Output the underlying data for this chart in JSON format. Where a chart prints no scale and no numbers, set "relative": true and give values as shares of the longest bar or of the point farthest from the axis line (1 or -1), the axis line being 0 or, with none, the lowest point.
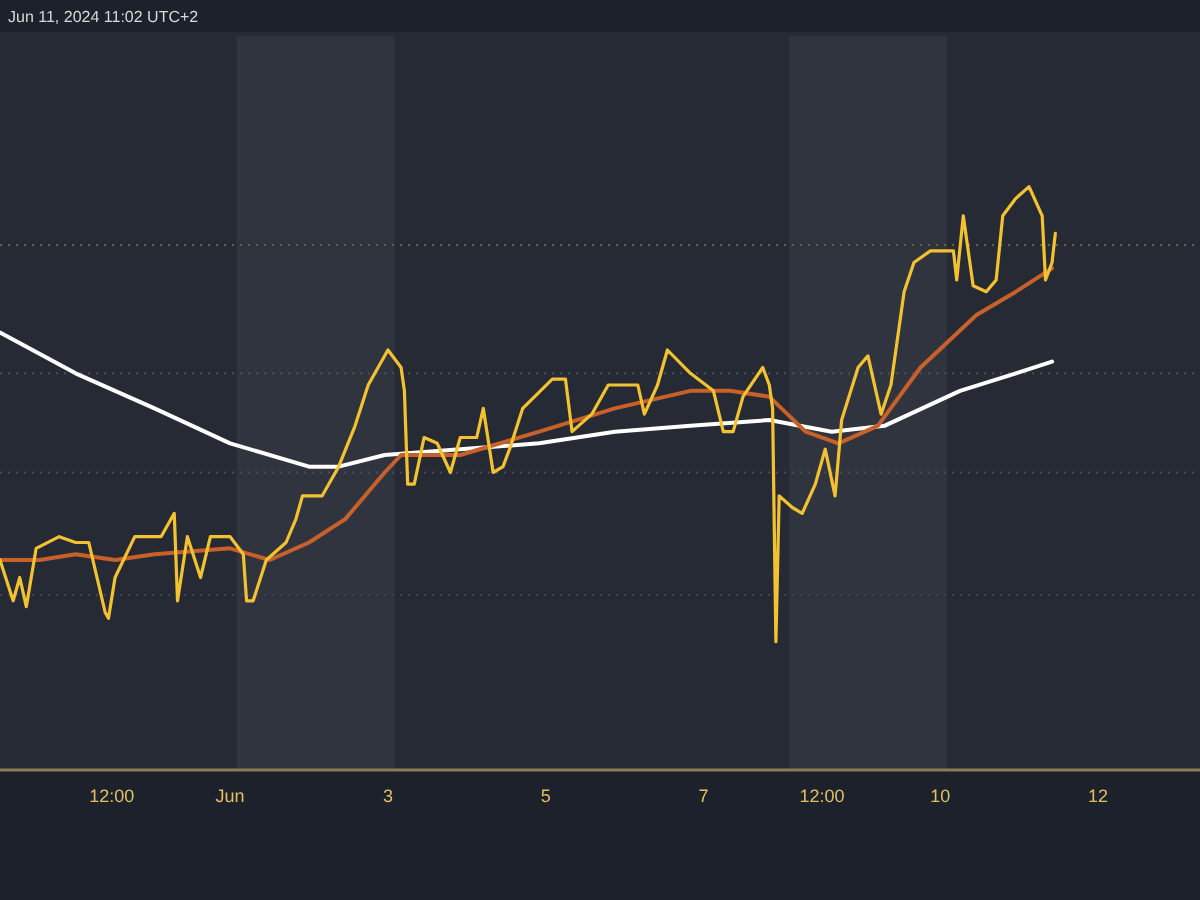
{
  "chart_data": {
    "type": "line",
    "relative": true,
    "grid": false,
    "tick_labels": "x",
    "xlim": [
      "2024-05-29T02:00",
      "2024-06-13T07:00"
    ],
    "xticks": [
      {
        "value": "2024-05-30T12:00",
        "label": "12:00"
      },
      {
        "value": "2024-06-01",
        "label": "Jun"
      },
      {
        "value": "2024-06-03",
        "label": "3"
      },
      {
        "value": "2024-06-05",
        "label": "5"
      },
      {
        "value": "2024-06-07",
        "label": "7"
      },
      {
        "value": "2024-06-08T12:00",
        "label": "12:00"
      },
      {
        "value": "2024-06-10",
        "label": "10"
      },
      {
        "value": "2024-06-12",
        "label": "12"
      }
    ],
    "annotations": [
      "Jun 11, 2024 11:02 UTC+2"
    ],
    "bands": [
      {
        "axis": "x",
        "from": "2024-06-01T02:00",
        "to": "2024-06-03T02:00",
        "color": "#30343f"
      },
      {
        "axis": "x",
        "from": "2024-06-08T02:00",
        "to": "2024-06-10T02:00",
        "color": "#30343f"
      }
    ],
    "ref_lines": [
      {
        "axis": "y",
        "value": 0.9,
        "color": "#6b6440",
        "line_style": "dotted"
      },
      {
        "axis": "y",
        "value": 0.68,
        "color": "#4a4d55",
        "line_style": "dotted"
      },
      {
        "axis": "y",
        "value": 0.51,
        "color": "#4a4d55",
        "line_style": "dotted"
      },
      {
        "axis": "y",
        "value": 0.3,
        "color": "#3f424a",
        "line_style": "dotted"
      }
    ],
    "series": [
      {
        "color": "#ffffff",
        "x": [
          "2024-05-29T02:00",
          "2024-05-30T01:00",
          "2024-05-31T01:00",
          "2024-06-01T00:00",
          "2024-06-02T00:00",
          "2024-06-02T09:00",
          "2024-06-02T23:00",
          "2024-06-03T22:00",
          "2024-06-04T22:00",
          "2024-06-05T21:00",
          "2024-06-06T20:00",
          "2024-06-07T20:00",
          "2024-06-08T15:00",
          "2024-06-09T07:00",
          "2024-06-10T06:00",
          "2024-06-10T23:00",
          "2024-06-11T10:00"
        ],
        "values": [
          0.75,
          0.68,
          0.62,
          0.56,
          0.52,
          0.52,
          0.54,
          0.55,
          0.56,
          0.58,
          0.59,
          0.6,
          0.58,
          0.59,
          0.65,
          0.68,
          0.7
        ]
      },
      {
        "color": "#c8602a",
        "x": [
          "2024-05-29T02:00",
          "2024-05-29T14:00",
          "2024-05-30T01:00",
          "2024-05-30T13:00",
          "2024-05-31T01:00",
          "2024-06-01T00:00",
          "2024-06-01T12:00",
          "2024-06-02T00:00",
          "2024-06-02T11:00",
          "2024-06-02T23:00",
          "2024-06-03T04:00",
          "2024-06-03T22:00",
          "2024-06-04T22:00",
          "2024-06-05T21:00",
          "2024-06-06T20:00",
          "2024-06-07T08:00",
          "2024-06-07T20:00",
          "2024-06-08T07:00",
          "2024-06-08T17:00",
          "2024-06-09T05:00",
          "2024-06-09T18:00",
          "2024-06-10T11:00",
          "2024-06-10T23:00",
          "2024-06-11T10:00"
        ],
        "values": [
          0.36,
          0.36,
          0.37,
          0.36,
          0.37,
          0.38,
          0.36,
          0.39,
          0.43,
          0.51,
          0.54,
          0.54,
          0.58,
          0.62,
          0.65,
          0.65,
          0.64,
          0.58,
          0.56,
          0.59,
          0.69,
          0.78,
          0.82,
          0.86
        ]
      },
      {
        "color": "#f2c230",
        "x": [
          "2024-05-29T02:00",
          "2024-05-29T06:00",
          "2024-05-29T08:00",
          "2024-05-29T10:00",
          "2024-05-29T13:00",
          "2024-05-29T20:00",
          "2024-05-30T01:00",
          "2024-05-30T05:00",
          "2024-05-30T10:00",
          "2024-05-30T11:00",
          "2024-05-30T13:00",
          "2024-05-30T19:00",
          "2024-05-31T03:00",
          "2024-05-31T07:00",
          "2024-05-31T08:00",
          "2024-05-31T11:00",
          "2024-05-31T15:00",
          "2024-05-31T18:00",
          "2024-06-01T00:00",
          "2024-06-01T04:00",
          "2024-06-01T05:00",
          "2024-06-01T07:00",
          "2024-06-01T11:00",
          "2024-06-01T17:00",
          "2024-06-01T20:00",
          "2024-06-01T22:00",
          "2024-06-02T04:00",
          "2024-06-02T09:00",
          "2024-06-02T14:00",
          "2024-06-02T18:00",
          "2024-06-03T00:00",
          "2024-06-03T04:00",
          "2024-06-03T05:00",
          "2024-06-03T06:00",
          "2024-06-03T08:00",
          "2024-06-03T11:00",
          "2024-06-03T15:00",
          "2024-06-03T19:00",
          "2024-06-03T22:00",
          "2024-06-04T03:00",
          "2024-06-04T05:00",
          "2024-06-04T08:00",
          "2024-06-04T11:00",
          "2024-06-04T13:00",
          "2024-06-04T17:00",
          "2024-06-05T02:00",
          "2024-06-05T06:00",
          "2024-06-05T08:00",
          "2024-06-05T14:00",
          "2024-06-05T19:00",
          "2024-06-06T04:00",
          "2024-06-06T06:00",
          "2024-06-06T10:00",
          "2024-06-06T13:00",
          "2024-06-06T20:00",
          "2024-06-07T03:00",
          "2024-06-07T06:00",
          "2024-06-07T09:00",
          "2024-06-07T12:00",
          "2024-06-07T18:00",
          "2024-06-07T20:00",
          "2024-06-07T21:00",
          "2024-06-07T22:00",
          "2024-06-07T23:00",
          "2024-06-08T03:00",
          "2024-06-08T06:00",
          "2024-06-08T10:00",
          "2024-06-08T13:00",
          "2024-06-08T16:00",
          "2024-06-08T18:00",
          "2024-06-08T23:00",
          "2024-06-09T02:00",
          "2024-06-09T06:00",
          "2024-06-09T09:00",
          "2024-06-09T13:00",
          "2024-06-09T16:00",
          "2024-06-09T21:00",
          "2024-06-10T04:00",
          "2024-06-10T05:00",
          "2024-06-10T07:00",
          "2024-06-10T10:00",
          "2024-06-10T14:00",
          "2024-06-10T17:00",
          "2024-06-10T19:00",
          "2024-06-10T23:00",
          "2024-06-11T03:00",
          "2024-06-11T07:00",
          "2024-06-11T08:00",
          "2024-06-11T10:00",
          "2024-06-11T11:00"
        ],
        "values": [
          0.36,
          0.29,
          0.33,
          0.28,
          0.38,
          0.4,
          0.39,
          0.39,
          0.27,
          0.26,
          0.33,
          0.4,
          0.4,
          0.44,
          0.29,
          0.4,
          0.33,
          0.4,
          0.4,
          0.37,
          0.29,
          0.29,
          0.36,
          0.39,
          0.43,
          0.47,
          0.47,
          0.52,
          0.59,
          0.66,
          0.72,
          0.69,
          0.65,
          0.49,
          0.49,
          0.57,
          0.56,
          0.51,
          0.57,
          0.57,
          0.62,
          0.51,
          0.52,
          0.55,
          0.62,
          0.67,
          0.67,
          0.58,
          0.61,
          0.66,
          0.66,
          0.61,
          0.66,
          0.72,
          0.68,
          0.65,
          0.58,
          0.58,
          0.64,
          0.69,
          0.66,
          0.62,
          0.22,
          0.47,
          0.45,
          0.44,
          0.49,
          0.55,
          0.47,
          0.6,
          0.69,
          0.71,
          0.61,
          0.66,
          0.82,
          0.87,
          0.89,
          0.89,
          0.84,
          0.95,
          0.83,
          0.82,
          0.84,
          0.95,
          0.98,
          1,
          0.95,
          0.84,
          0.87,
          0.92
        ]
      }
    ]
  }
}
